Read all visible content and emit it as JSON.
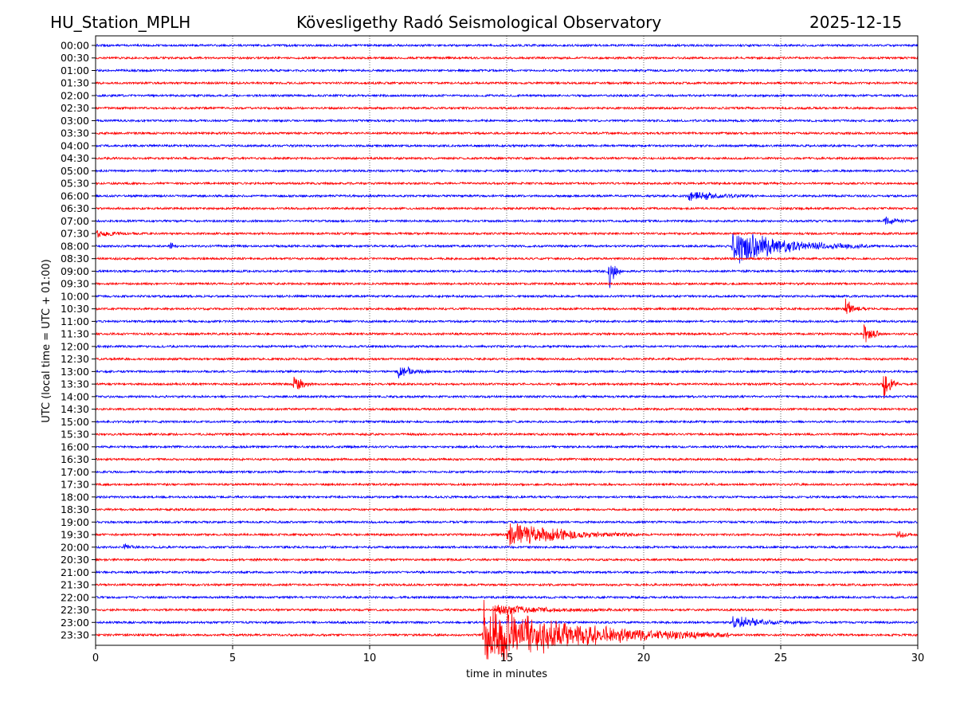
{
  "header": {
    "station": "HU_Station_MPLH",
    "title": "Kövesligethy Radó Seismological Observatory",
    "date": "2025-12-15"
  },
  "chart_data": {
    "type": "line",
    "title": "Kövesligethy Radó Seismological Observatory",
    "xlabel": "time in minutes",
    "ylabel": "UTC (local time = UTC + 01:00)",
    "xlim": [
      0,
      30
    ],
    "xticks": [
      "0",
      "5",
      "10",
      "15",
      "20",
      "25",
      "30"
    ],
    "grid": "vertical dotted at every 5 minutes",
    "colors": [
      "#0000ff",
      "#ff0000"
    ],
    "rows": [
      "00:00",
      "00:30",
      "01:00",
      "01:30",
      "02:00",
      "02:30",
      "03:00",
      "03:30",
      "04:00",
      "04:30",
      "05:00",
      "05:30",
      "06:00",
      "06:30",
      "07:00",
      "07:30",
      "08:00",
      "08:30",
      "09:00",
      "09:30",
      "10:00",
      "10:30",
      "11:00",
      "11:30",
      "12:00",
      "12:30",
      "13:00",
      "13:30",
      "14:00",
      "14:30",
      "15:00",
      "15:30",
      "16:00",
      "16:30",
      "17:00",
      "17:30",
      "18:00",
      "18:30",
      "19:00",
      "19:30",
      "20:00",
      "20:30",
      "21:00",
      "21:30",
      "22:00",
      "22:30",
      "23:00",
      "23:30"
    ],
    "events": [
      {
        "row": "06:00",
        "start_min": 21.6,
        "duration_min": 2.6,
        "amplitude": 0.55
      },
      {
        "row": "07:00",
        "start_min": 28.7,
        "duration_min": 1.3,
        "amplitude": 0.45
      },
      {
        "row": "07:30",
        "start_min": 0.0,
        "duration_min": 1.5,
        "amplitude": 0.3
      },
      {
        "row": "08:00",
        "start_min": 2.7,
        "duration_min": 0.4,
        "amplitude": 0.35
      },
      {
        "row": "08:00",
        "start_min": 23.2,
        "duration_min": 5.0,
        "amplitude": 1.6
      },
      {
        "row": "09:00",
        "start_min": 18.7,
        "duration_min": 0.5,
        "amplitude": 1.8
      },
      {
        "row": "10:30",
        "start_min": 27.3,
        "duration_min": 0.8,
        "amplitude": 0.9
      },
      {
        "row": "11:30",
        "start_min": 28.0,
        "duration_min": 0.7,
        "amplitude": 1.4
      },
      {
        "row": "13:00",
        "start_min": 11.0,
        "duration_min": 1.2,
        "amplitude": 0.7
      },
      {
        "row": "13:30",
        "start_min": 7.2,
        "duration_min": 0.7,
        "amplitude": 1.1
      },
      {
        "row": "13:30",
        "start_min": 28.7,
        "duration_min": 0.6,
        "amplitude": 1.5
      },
      {
        "row": "19:30",
        "start_min": 15.0,
        "duration_min": 4.8,
        "amplitude": 1.3
      },
      {
        "row": "19:30",
        "start_min": 29.2,
        "duration_min": 0.8,
        "amplitude": 0.35
      },
      {
        "row": "20:00",
        "start_min": 1.0,
        "duration_min": 0.6,
        "amplitude": 0.35
      },
      {
        "row": "22:30",
        "start_min": 14.6,
        "duration_min": 5.5,
        "amplitude": 0.4
      },
      {
        "row": "23:00",
        "start_min": 23.2,
        "duration_min": 2.8,
        "amplitude": 0.6
      },
      {
        "row": "23:30",
        "start_min": 14.1,
        "duration_min": 9.0,
        "amplitude": 3.0
      }
    ]
  }
}
